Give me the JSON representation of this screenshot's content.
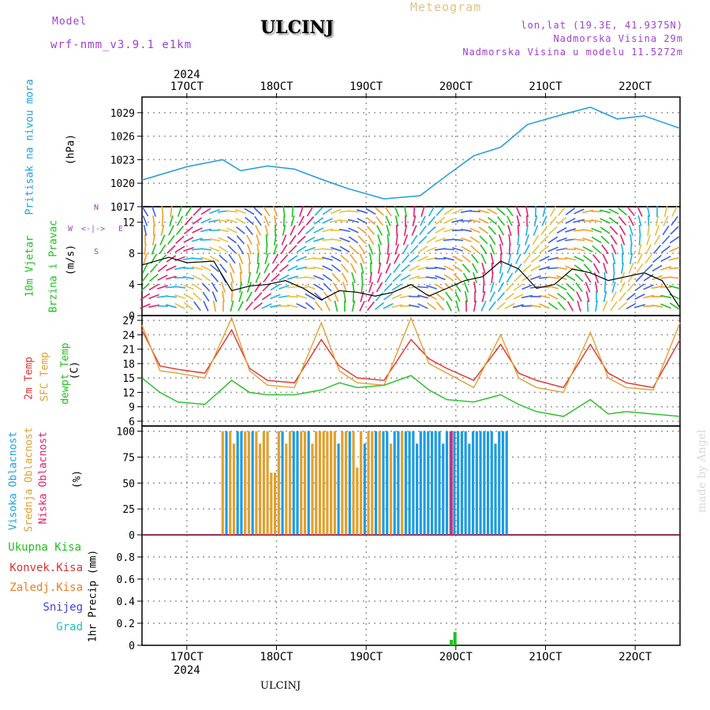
{
  "header": {
    "title": "ULCINJ",
    "subtitle": "Meteogram",
    "model_label": "Model",
    "model_name": "wrf-nmm_v3.9.1 e1km",
    "lonlat": "lon,lat (19.3E, 41.9375N)",
    "altitude": "Nadmorska Visina 29m",
    "model_altitude": "Nadmorska Visina u modelu 11.5272m",
    "footer": "ULCINJ",
    "watermark": "made by Angel"
  },
  "colors": {
    "pressure": "#1e9be0",
    "temp2m": "#e03030",
    "sfc": "#e0a030",
    "dewpt": "#20c020",
    "cloud_high": "#1e9be0",
    "cloud_mid": "#e0a030",
    "cloud_low": "#e0206a",
    "precip_total": "#20c020",
    "precip_conv": "#e03030",
    "precip_strat": "#f07a20",
    "snow": "#4040e0",
    "hail": "#20c0c0"
  },
  "dates": {
    "year": "2024",
    "days": [
      "17OCT",
      "18OCT",
      "19OCT",
      "20OCT",
      "21OCT",
      "22OCT"
    ]
  },
  "labels": {
    "pressure": "Pritisak na nivou mora",
    "pressure_unit": "(hPa)",
    "wind1": "10m Vjetar",
    "wind2": "Brzina i Pravac",
    "wind_unit": "(m/s)",
    "compass_n": "N",
    "compass_s": "S",
    "compass_w": "W",
    "compass_e": "E",
    "temp1": "2m Temp",
    "temp2": "SFC Temp",
    "temp3": "dewpt Temp",
    "temp_unit": "(C)",
    "cloud1": "Visoka Oblacnost",
    "cloud2": "Srednja Oblacnost",
    "cloud3": "Niska Oblacnost",
    "cloud_unit": "(%)",
    "precip1": "Ukupna Kisa",
    "precip2": "Konvek.Kisa",
    "precip3": "Zaledj.Kisa",
    "precip4": "Snijeg",
    "precip5": "Grad",
    "precip_axis": "1hr Precip (mm)"
  },
  "chart_data": [
    {
      "type": "line",
      "xlabel": "",
      "ylabel": "(hPa)",
      "ylim": [
        1017,
        1031
      ],
      "yticks": [
        1017,
        1020,
        1023,
        1026,
        1029
      ],
      "x_days": [
        16.5,
        17.0,
        17.4,
        17.6,
        17.9,
        18.2,
        18.5,
        18.8,
        19.2,
        19.6,
        19.9,
        20.2,
        20.5,
        20.8,
        21.2,
        21.5,
        21.8,
        22.1,
        22.5
      ],
      "series": [
        {
          "values": [
            1020.4,
            1022.1,
            1023.0,
            1021.6,
            1022.2,
            1021.8,
            1020.5,
            1019.3,
            1018.0,
            1018.4,
            1021.0,
            1023.5,
            1024.6,
            1027.5,
            1028.8,
            1029.7,
            1028.2,
            1028.6,
            1027.0
          ]
        }
      ]
    },
    {
      "type": "line",
      "ylabel": "(m/s)",
      "ylim": [
        0,
        14
      ],
      "yticks": [
        0,
        4,
        8,
        12
      ],
      "x_days": [
        16.5,
        16.8,
        17.0,
        17.3,
        17.5,
        17.7,
        17.9,
        18.1,
        18.3,
        18.5,
        18.7,
        18.9,
        19.1,
        19.3,
        19.5,
        19.7,
        19.9,
        20.1,
        20.3,
        20.5,
        20.7,
        20.9,
        21.1,
        21.3,
        21.5,
        21.7,
        21.9,
        22.1,
        22.3,
        22.5
      ],
      "series": [
        {
          "values": [
            6.5,
            7.5,
            6.8,
            7.0,
            3.2,
            3.8,
            4.0,
            4.5,
            3.5,
            2.0,
            3.2,
            3.0,
            2.5,
            3.0,
            4.0,
            2.5,
            3.5,
            4.5,
            5.0,
            7.0,
            6.0,
            3.5,
            4.0,
            6.0,
            5.5,
            4.5,
            5.0,
            5.5,
            4.5,
            1.0
          ]
        }
      ]
    },
    {
      "type": "line",
      "ylabel": "(C)",
      "ylim": [
        5,
        28
      ],
      "yticks": [
        6,
        9,
        12,
        15,
        18,
        21,
        24,
        27
      ],
      "x_days": [
        16.5,
        16.7,
        16.9,
        17.2,
        17.5,
        17.7,
        17.9,
        18.2,
        18.5,
        18.7,
        18.9,
        19.2,
        19.5,
        19.7,
        19.9,
        20.2,
        20.5,
        20.7,
        20.9,
        21.2,
        21.5,
        21.7,
        21.9,
        22.2,
        22.5
      ],
      "series": [
        {
          "name": "2m Temp",
          "values": [
            25.0,
            17.5,
            16.8,
            16.0,
            25.0,
            17.0,
            14.5,
            14.0,
            23.0,
            17.5,
            15.0,
            14.5,
            23.0,
            19.0,
            17.0,
            14.5,
            22.0,
            16.0,
            14.5,
            13.0,
            22.0,
            16.0,
            14.0,
            13.0,
            23.0
          ]
        },
        {
          "name": "SFC Temp",
          "values": [
            26.0,
            16.5,
            16.0,
            15.0,
            27.5,
            16.5,
            13.5,
            13.0,
            26.5,
            16.5,
            14.0,
            13.5,
            27.5,
            18.0,
            16.0,
            13.0,
            24.0,
            15.0,
            13.0,
            12.0,
            24.5,
            15.0,
            13.0,
            12.5,
            26.5
          ]
        },
        {
          "name": "dewpt Temp",
          "values": [
            15.0,
            12.0,
            10.0,
            9.5,
            14.5,
            12.0,
            11.5,
            11.5,
            12.5,
            14.0,
            13.0,
            13.5,
            15.5,
            12.5,
            10.5,
            10.0,
            11.5,
            9.5,
            8.0,
            7.0,
            10.5,
            7.5,
            8.0,
            7.5,
            7.0
          ]
        }
      ]
    },
    {
      "type": "bar",
      "ylabel": "(%)",
      "ylim": [
        0,
        105
      ],
      "yticks": [
        0,
        25,
        50,
        75,
        100
      ],
      "x_range_days": [
        17.4,
        20.6
      ],
      "series": [
        {
          "name": "Visoka Oblacnost",
          "values": [
            100,
            100,
            100,
            65,
            100
          ]
        },
        {
          "name": "Srednja Oblacnost",
          "values": [
            100,
            100,
            60,
            100,
            90
          ]
        },
        {
          "name": "Niska Oblacnost",
          "values": [
            0,
            0,
            0,
            100,
            0
          ]
        }
      ]
    },
    {
      "type": "bar",
      "ylabel": "1hr Precip (mm)",
      "ylim": [
        0,
        1.0
      ],
      "yticks": [
        0,
        0.2,
        0.4,
        0.6,
        0.8
      ],
      "x_days": [
        19.95,
        19.99
      ],
      "series": [
        {
          "name": "Ukupna Kisa",
          "values": [
            0.05,
            0.12
          ]
        }
      ]
    }
  ]
}
